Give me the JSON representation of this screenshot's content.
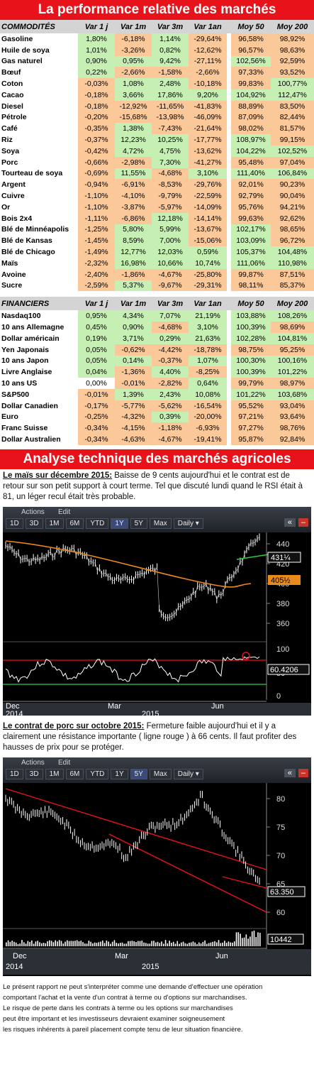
{
  "title": "La performance relative des marchés",
  "headers_comm": [
    "COMMODITÉS",
    "Var 1 j",
    "Var 1m",
    "Var 3m",
    "Var 1an",
    "Moy 50",
    "Moy 200"
  ],
  "headers_fin": [
    "FINANCIERS",
    "Var 1 j",
    "Var 1m",
    "Var 3m",
    "Var 1an",
    "Moy 50",
    "Moy 200"
  ],
  "commodities": [
    [
      "Gasoline",
      "1,80%",
      "-6,18%",
      "1,14%",
      "-29,64%",
      "96,58%",
      "98,92%"
    ],
    [
      "Huile de soya",
      "1,01%",
      "-3,26%",
      "0,82%",
      "-12,62%",
      "96,57%",
      "98,63%"
    ],
    [
      "Gas naturel",
      "0,90%",
      "0,95%",
      "9,42%",
      "-27,11%",
      "102,56%",
      "92,59%"
    ],
    [
      "Bœuf",
      "0,22%",
      "-2,66%",
      "-1,58%",
      "-2,66%",
      "97,33%",
      "93,52%"
    ],
    [
      "Coton",
      "-0,03%",
      "1,08%",
      "2,48%",
      "-10,18%",
      "99,83%",
      "100,77%"
    ],
    [
      "Cacao",
      "-0,18%",
      "3,66%",
      "17,86%",
      "9,20%",
      "104,92%",
      "112,47%"
    ],
    [
      "Diesel",
      "-0,18%",
      "-12,92%",
      "-11,65%",
      "-41,83%",
      "88,89%",
      "83,50%"
    ],
    [
      "Pétrole",
      "-0,20%",
      "-15,68%",
      "-13,98%",
      "-46,09%",
      "87,09%",
      "82,44%"
    ],
    [
      "Café",
      "-0,35%",
      "1,38%",
      "-7,43%",
      "-21,64%",
      "98,02%",
      "81,57%"
    ],
    [
      "Riz",
      "-0,37%",
      "12,23%",
      "10,25%",
      "-17,77%",
      "108,97%",
      "99,15%"
    ],
    [
      "Soya",
      "-0,42%",
      "4,72%",
      "4,75%",
      "-13,62%",
      "104,22%",
      "102,52%"
    ],
    [
      "Porc",
      "-0,66%",
      "-2,98%",
      "7,30%",
      "-41,27%",
      "95,48%",
      "97,04%"
    ],
    [
      "Tourteau de soya",
      "-0,69%",
      "11,55%",
      "-4,68%",
      "3,10%",
      "111,40%",
      "106,84%"
    ],
    [
      "Argent",
      "-0,94%",
      "-6,91%",
      "-8,53%",
      "-29,76%",
      "92,01%",
      "90,23%"
    ],
    [
      "Cuivre",
      "-1,10%",
      "-4,10%",
      "-9,79%",
      "-22,59%",
      "92,79%",
      "90,04%"
    ],
    [
      "Or",
      "-1,10%",
      "-3,87%",
      "-5,97%",
      "-14,09%",
      "95,76%",
      "94,21%"
    ],
    [
      "Bois 2x4",
      "-1,11%",
      "-6,86%",
      "12,18%",
      "-14,14%",
      "99,63%",
      "92,62%"
    ],
    [
      "Blé de Minnéapolis",
      "-1,25%",
      "5,80%",
      "5,99%",
      "-13,67%",
      "102,17%",
      "98,65%"
    ],
    [
      "Blé de Kansas",
      "-1,45%",
      "8,59%",
      "7,00%",
      "-15,06%",
      "103,09%",
      "96,72%"
    ],
    [
      "Blé de Chicago",
      "-1,49%",
      "12,77%",
      "12,03%",
      "0,59%",
      "105,37%",
      "104,48%"
    ],
    [
      "Maïs",
      "-2,32%",
      "16,98%",
      "10,66%",
      "10,74%",
      "111,06%",
      "110,98%"
    ],
    [
      "Avoine",
      "-2,40%",
      "-1,86%",
      "-4,67%",
      "-25,80%",
      "99,87%",
      "87,51%"
    ],
    [
      "Sucre",
      "-2,59%",
      "5,37%",
      "-9,67%",
      "-29,31%",
      "98,11%",
      "85,37%"
    ]
  ],
  "financials": [
    [
      "Nasdaq100",
      "0,95%",
      "4,34%",
      "7,07%",
      "21,19%",
      "103,88%",
      "108,26%"
    ],
    [
      "10 ans Allemagne",
      "0,45%",
      "0,90%",
      "-4,68%",
      "3,10%",
      "100,39%",
      "98,69%"
    ],
    [
      "Dollar américain",
      "0,19%",
      "3,71%",
      "0,29%",
      "21,63%",
      "102,28%",
      "104,81%"
    ],
    [
      "Yen Japonais",
      "0,05%",
      "-0,62%",
      "-4,42%",
      "-18,78%",
      "98,75%",
      "95,25%"
    ],
    [
      "10 ans Japon",
      "0,05%",
      "0,14%",
      "-0,37%",
      "1,07%",
      "100,30%",
      "100,16%"
    ],
    [
      "Livre Anglaise",
      "0,04%",
      "-1,36%",
      "4,40%",
      "-8,25%",
      "100,39%",
      "101,22%"
    ],
    [
      "10 ans US",
      "0,00%",
      "-0,01%",
      "-2,82%",
      "0,64%",
      "99,79%",
      "98,97%"
    ],
    [
      "S&P500",
      "-0,01%",
      "1,39%",
      "2,43%",
      "10,08%",
      "101,22%",
      "103,68%"
    ],
    [
      "Dollar Canadien",
      "-0,17%",
      "-5,77%",
      "-5,62%",
      "-16,54%",
      "95,52%",
      "93,04%"
    ],
    [
      "Euro",
      "-0,25%",
      "-4,32%",
      "0,39%",
      "-20,00%",
      "97,21%",
      "93,64%"
    ],
    [
      "Franc Suisse",
      "-0,34%",
      "-4,15%",
      "-1,18%",
      "-6,93%",
      "97,27%",
      "98,76%"
    ],
    [
      "Dollar Australien",
      "-0,34%",
      "-4,63%",
      "-4,67%",
      "-19,41%",
      "95,87%",
      "92,84%"
    ]
  ],
  "analysis_title": "Analyse technique des marchés agricoles",
  "corn": {
    "heading": "Le maïs sur décembre 2015:",
    "text": " Baisse de 9 cents aujourd'hui et le contrat est de retour sur son petit support à court terme. Tel que discuté lundi quand le RSI était à 81, un léger recul était très probable.",
    "tabs_top": [
      "Actions",
      "Edit"
    ],
    "tabs": [
      "1D",
      "3D",
      "1M",
      "6M",
      "YTD",
      "1Y",
      "5Y",
      "Max",
      "Daily ▾"
    ],
    "active_tab": "1Y",
    "y_labels": [
      "440",
      "420",
      "400",
      "380",
      "360"
    ],
    "last_price": "431¼",
    "ma_price": "405½",
    "rsi_labels": [
      "100",
      "50",
      "0"
    ],
    "rsi_value": "60.4206",
    "x_labels": [
      "Dec",
      "Mar",
      "Jun"
    ],
    "years": [
      "2014",
      "2015"
    ]
  },
  "pork": {
    "heading": "Le contrat de porc sur octobre 2015:",
    "text": " Fermeture faible aujourd'hui et il y a clairement une résistance importante ( ligne rouge ) à 66 cents. Il faut profiter des hausses de prix pour se protéger.",
    "tabs_top": [
      "Actions",
      "Edit"
    ],
    "tabs": [
      "1D",
      "3D",
      "1M",
      "6M",
      "YTD",
      "1Y",
      "5Y",
      "Max",
      "Daily ▾"
    ],
    "active_tab": "5Y",
    "y_labels": [
      "80",
      "75",
      "70",
      "65",
      "60"
    ],
    "last_price": "63.350",
    "volume": "10442",
    "x_labels": [
      "Dec",
      "Mar",
      "Jun"
    ],
    "years": [
      "2014",
      "2015"
    ]
  },
  "footer": [
    "Le présent rapport ne peut s'interpréter comme une demande d'effectuer une opération",
    "comportant l'achat et la vente d'un contrat à terme ou d'options sur marchandises.",
    "Le risque de perte dans les contrats à terme ou les options sur marchandises",
    "peut être important et les investisseurs devraient examiner soigneusement",
    "les risques inhérents à pareil placement compte tenu de leur situation financière."
  ],
  "colors": {
    "banner": "#e8121b",
    "positive": "#c6efb3",
    "negative": "#fbc89a",
    "price": "#ffffff",
    "ma": "#e98a1a",
    "support": "#2ecc40",
    "resistance": "#e8121b"
  }
}
